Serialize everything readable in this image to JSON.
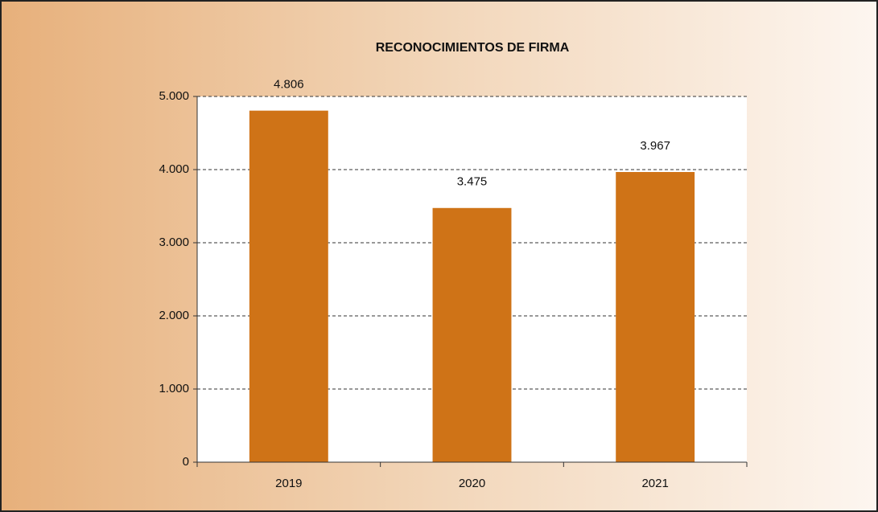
{
  "chart_data": {
    "type": "bar",
    "title": "RECONOCIMIENTOS DE FIRMA",
    "categories": [
      "2019",
      "2020",
      "2021"
    ],
    "values": [
      4806,
      3475,
      3967
    ],
    "value_labels": [
      "4.806",
      "3.475",
      "3.967"
    ],
    "color": "#cf7317",
    "ylim": [
      0,
      5000
    ],
    "yticks": [
      0,
      {
        "value": 1000,
        "label": "1.000"
      },
      {
        "value": 2000,
        "label": "2.000"
      },
      {
        "value": 3000,
        "label": "3.000"
      },
      {
        "value": 4000,
        "label": "4.000"
      },
      {
        "value": 5000,
        "label": "5.000"
      }
    ],
    "grid": true
  }
}
